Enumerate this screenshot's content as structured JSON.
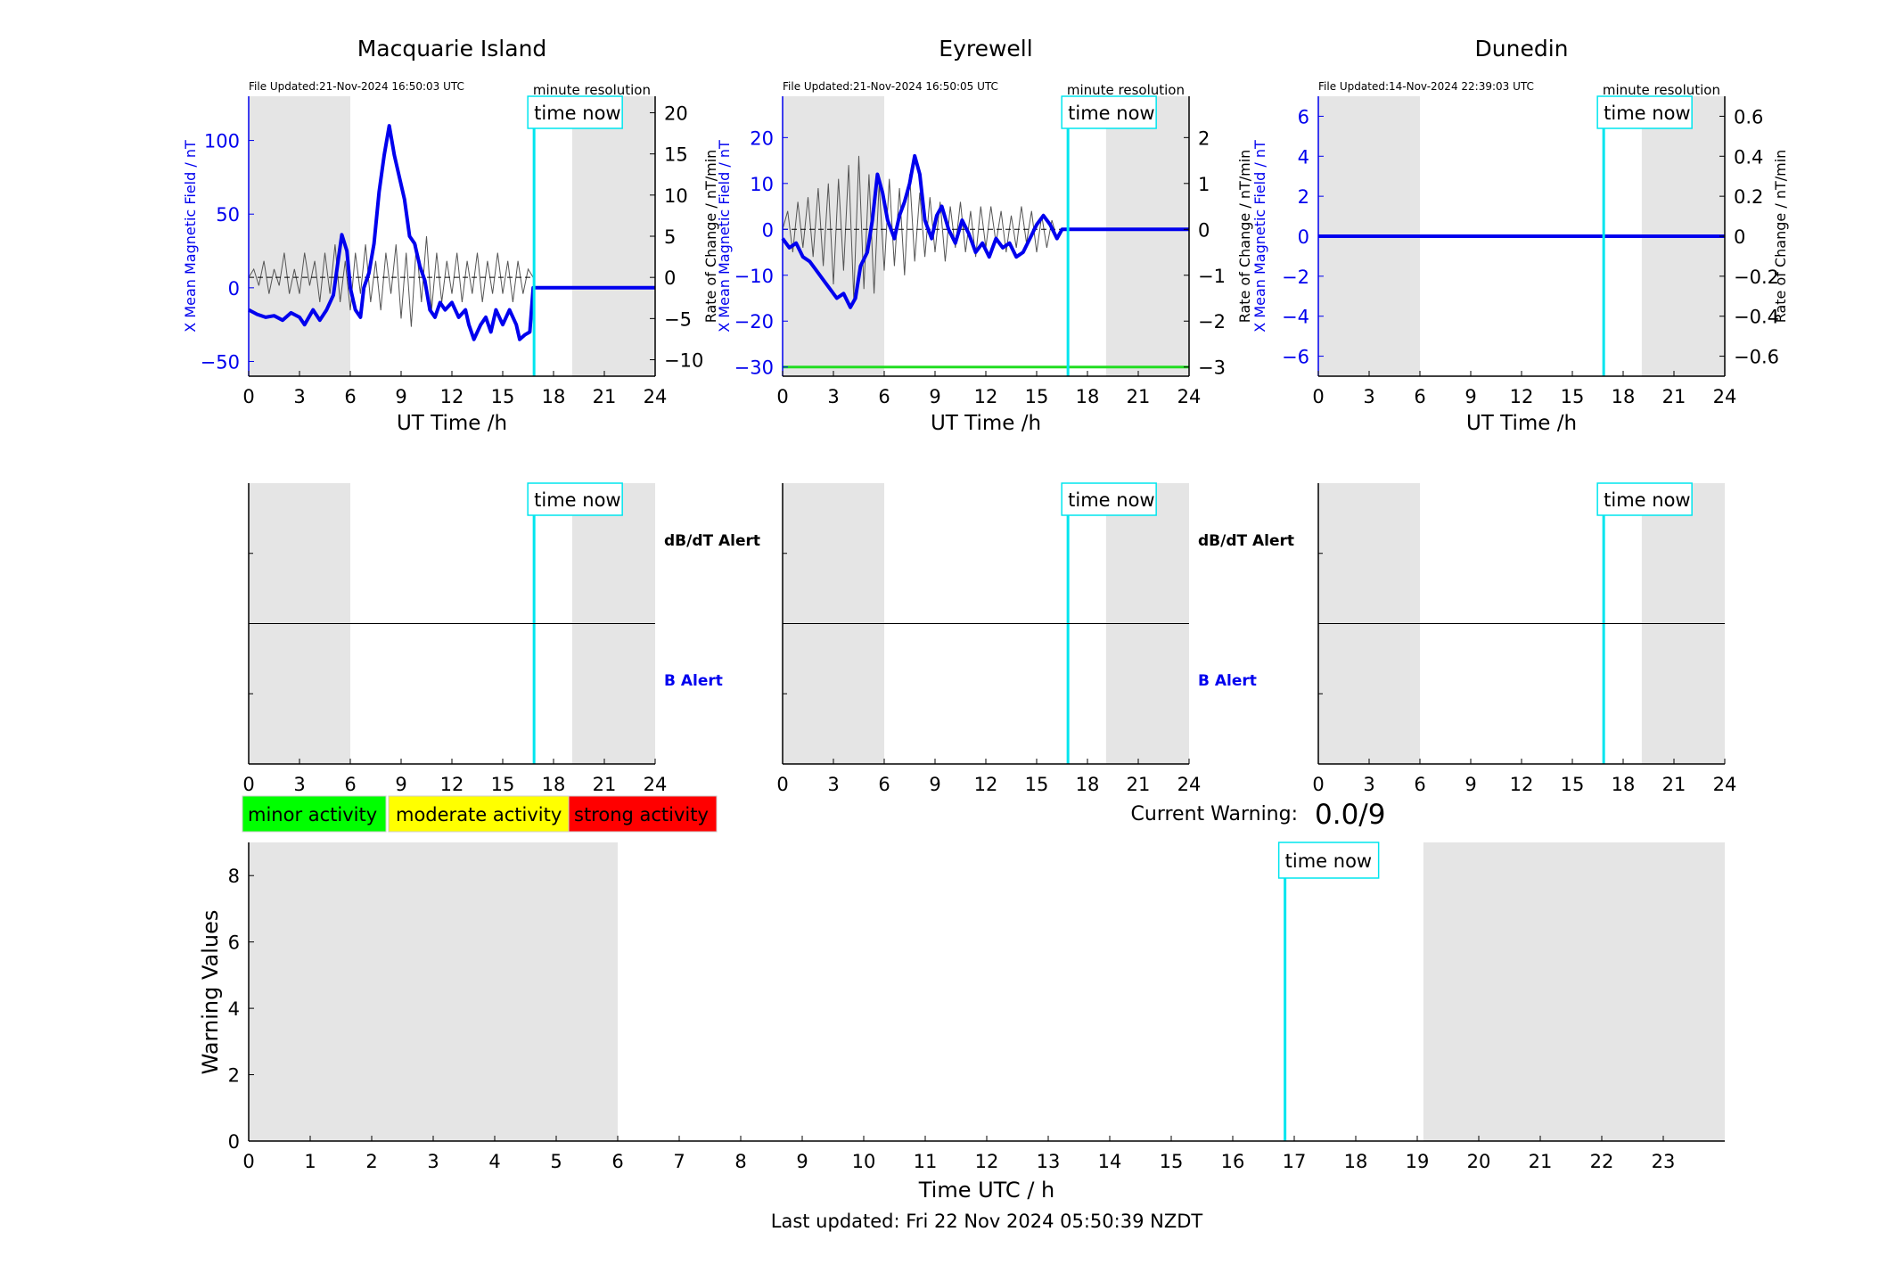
{
  "stations": [
    {
      "name": "Macquarie Island",
      "file_updated": "File Updated:21-Nov-2024 16:50:03 UTC",
      "resolution": "minute resolution",
      "left_axis_label": "X Mean Magnetic Field / nT",
      "right_axis_label": "Rate of Change / nT/min",
      "xlabel": "UT Time /h",
      "left_ticks": [
        -50,
        0,
        50,
        100
      ],
      "left_ylim": [
        -60,
        130
      ],
      "right_ticks": [
        -10,
        -5,
        0,
        5,
        10,
        15,
        20
      ],
      "right_ylim": [
        -12,
        22
      ],
      "has_threshold_line": false,
      "has_alert_labels": true,
      "magnetic_field": [
        [
          0,
          -15
        ],
        [
          0.5,
          -18
        ],
        [
          1,
          -20
        ],
        [
          1.5,
          -19
        ],
        [
          2,
          -22
        ],
        [
          2.5,
          -17
        ],
        [
          3,
          -20
        ],
        [
          3.3,
          -25
        ],
        [
          3.8,
          -15
        ],
        [
          4.2,
          -22
        ],
        [
          4.6,
          -15
        ],
        [
          5,
          -5
        ],
        [
          5.3,
          20
        ],
        [
          5.5,
          36
        ],
        [
          5.8,
          25
        ],
        [
          6,
          0
        ],
        [
          6.3,
          -15
        ],
        [
          6.6,
          -20
        ],
        [
          6.8,
          0
        ],
        [
          7.1,
          10
        ],
        [
          7.4,
          30
        ],
        [
          7.7,
          65
        ],
        [
          8.0,
          90
        ],
        [
          8.3,
          110
        ],
        [
          8.6,
          90
        ],
        [
          8.9,
          75
        ],
        [
          9.2,
          60
        ],
        [
          9.5,
          35
        ],
        [
          9.8,
          30
        ],
        [
          10.1,
          15
        ],
        [
          10.4,
          5
        ],
        [
          10.7,
          -15
        ],
        [
          11.0,
          -20
        ],
        [
          11.3,
          -10
        ],
        [
          11.6,
          -15
        ],
        [
          12.0,
          -10
        ],
        [
          12.4,
          -20
        ],
        [
          12.8,
          -15
        ],
        [
          13.0,
          -25
        ],
        [
          13.3,
          -35
        ],
        [
          13.7,
          -25
        ],
        [
          14.0,
          -20
        ],
        [
          14.3,
          -30
        ],
        [
          14.6,
          -15
        ],
        [
          15.0,
          -25
        ],
        [
          15.4,
          -15
        ],
        [
          15.8,
          -25
        ],
        [
          16.0,
          -35
        ],
        [
          16.3,
          -32
        ],
        [
          16.6,
          -30
        ],
        [
          16.8,
          0
        ],
        [
          24,
          0
        ]
      ],
      "rate_of_change": [
        [
          0,
          0
        ],
        [
          0.3,
          1
        ],
        [
          0.6,
          -1
        ],
        [
          0.9,
          2
        ],
        [
          1.2,
          -2
        ],
        [
          1.5,
          1
        ],
        [
          1.8,
          -1
        ],
        [
          2.1,
          3
        ],
        [
          2.4,
          -2
        ],
        [
          2.7,
          1
        ],
        [
          3.0,
          -2
        ],
        [
          3.3,
          3
        ],
        [
          3.6,
          -1
        ],
        [
          3.9,
          2
        ],
        [
          4.2,
          -3
        ],
        [
          4.5,
          3
        ],
        [
          4.8,
          -2
        ],
        [
          5.1,
          4
        ],
        [
          5.4,
          -3
        ],
        [
          5.7,
          2
        ],
        [
          6.0,
          -4
        ],
        [
          6.3,
          3
        ],
        [
          6.6,
          -2
        ],
        [
          6.9,
          4
        ],
        [
          7.2,
          -3
        ],
        [
          7.5,
          2
        ],
        [
          7.8,
          -4
        ],
        [
          8.1,
          3
        ],
        [
          8.4,
          -2
        ],
        [
          8.7,
          4
        ],
        [
          9.0,
          -5
        ],
        [
          9.3,
          3
        ],
        [
          9.6,
          -6
        ],
        [
          9.9,
          4
        ],
        [
          10.2,
          -3
        ],
        [
          10.5,
          5
        ],
        [
          10.8,
          -4
        ],
        [
          11.1,
          3
        ],
        [
          11.4,
          -3
        ],
        [
          11.7,
          2
        ],
        [
          12.0,
          -2
        ],
        [
          12.3,
          3
        ],
        [
          12.6,
          -3
        ],
        [
          12.9,
          2
        ],
        [
          13.2,
          -2
        ],
        [
          13.5,
          3
        ],
        [
          13.8,
          -3
        ],
        [
          14.1,
          2
        ],
        [
          14.4,
          -2
        ],
        [
          14.7,
          3
        ],
        [
          15.0,
          -2
        ],
        [
          15.3,
          2
        ],
        [
          15.6,
          -3
        ],
        [
          15.9,
          2
        ],
        [
          16.2,
          -2
        ],
        [
          16.5,
          1
        ],
        [
          16.8,
          0
        ]
      ]
    },
    {
      "name": "Eyrewell",
      "file_updated": "File Updated:21-Nov-2024 16:50:05 UTC",
      "resolution": "minute resolution",
      "left_axis_label": "X Mean Magnetic Field / nT",
      "right_axis_label": "Rate of Change / nT/min",
      "xlabel": "UT Time /h",
      "left_ticks": [
        -30,
        -20,
        -10,
        0,
        10,
        20
      ],
      "left_ylim": [
        -32,
        29
      ],
      "right_ticks": [
        -3,
        -2,
        -1,
        0,
        1,
        2
      ],
      "right_ylim": [
        -3.2,
        2.9
      ],
      "has_threshold_line": true,
      "threshold_value": -30,
      "has_alert_labels": true,
      "magnetic_field": [
        [
          0,
          -2
        ],
        [
          0.4,
          -4
        ],
        [
          0.8,
          -3
        ],
        [
          1.2,
          -6
        ],
        [
          1.6,
          -7
        ],
        [
          2.0,
          -9
        ],
        [
          2.4,
          -11
        ],
        [
          2.8,
          -13
        ],
        [
          3.2,
          -15
        ],
        [
          3.6,
          -14
        ],
        [
          4.0,
          -17
        ],
        [
          4.3,
          -15
        ],
        [
          4.6,
          -8
        ],
        [
          5.0,
          -5
        ],
        [
          5.3,
          2
        ],
        [
          5.6,
          12
        ],
        [
          5.9,
          8
        ],
        [
          6.2,
          2
        ],
        [
          6.6,
          -2
        ],
        [
          6.9,
          3
        ],
        [
          7.2,
          6
        ],
        [
          7.5,
          10
        ],
        [
          7.8,
          16
        ],
        [
          8.1,
          12
        ],
        [
          8.4,
          2
        ],
        [
          8.8,
          -2
        ],
        [
          9.1,
          3
        ],
        [
          9.4,
          5
        ],
        [
          9.8,
          0
        ],
        [
          10.2,
          -3
        ],
        [
          10.6,
          2
        ],
        [
          11.0,
          -1
        ],
        [
          11.4,
          -5
        ],
        [
          11.8,
          -3
        ],
        [
          12.2,
          -6
        ],
        [
          12.6,
          -2
        ],
        [
          13.0,
          -4
        ],
        [
          13.4,
          -3
        ],
        [
          13.8,
          -6
        ],
        [
          14.2,
          -5
        ],
        [
          14.6,
          -2
        ],
        [
          15.0,
          1
        ],
        [
          15.4,
          3
        ],
        [
          15.8,
          1
        ],
        [
          16.2,
          -2
        ],
        [
          16.5,
          0
        ],
        [
          24,
          0
        ]
      ],
      "rate_of_change": [
        [
          0,
          0
        ],
        [
          0.3,
          0.4
        ],
        [
          0.6,
          -0.5
        ],
        [
          0.9,
          0.6
        ],
        [
          1.2,
          -0.4
        ],
        [
          1.5,
          0.7
        ],
        [
          1.8,
          -0.6
        ],
        [
          2.1,
          0.9
        ],
        [
          2.4,
          -0.8
        ],
        [
          2.7,
          1.0
        ],
        [
          3.0,
          -1.2
        ],
        [
          3.3,
          1.1
        ],
        [
          3.6,
          -0.9
        ],
        [
          3.9,
          1.4
        ],
        [
          4.2,
          -1.5
        ],
        [
          4.5,
          1.6
        ],
        [
          4.8,
          -1.3
        ],
        [
          5.1,
          1.2
        ],
        [
          5.4,
          -1.4
        ],
        [
          5.7,
          1.0
        ],
        [
          6.0,
          -0.9
        ],
        [
          6.3,
          1.1
        ],
        [
          6.6,
          -0.8
        ],
        [
          6.9,
          0.9
        ],
        [
          7.2,
          -1.0
        ],
        [
          7.5,
          1.2
        ],
        [
          7.8,
          -0.7
        ],
        [
          8.1,
          0.8
        ],
        [
          8.4,
          -0.6
        ],
        [
          8.7,
          0.7
        ],
        [
          9.0,
          -0.5
        ],
        [
          9.3,
          0.6
        ],
        [
          9.6,
          -0.7
        ],
        [
          9.9,
          0.5
        ],
        [
          10.2,
          -0.4
        ],
        [
          10.5,
          0.6
        ],
        [
          10.8,
          -0.5
        ],
        [
          11.1,
          0.4
        ],
        [
          11.4,
          -0.6
        ],
        [
          11.7,
          0.5
        ],
        [
          12.0,
          -0.4
        ],
        [
          12.3,
          0.5
        ],
        [
          12.6,
          -0.3
        ],
        [
          12.9,
          0.4
        ],
        [
          13.2,
          -0.5
        ],
        [
          13.5,
          0.3
        ],
        [
          13.8,
          -0.4
        ],
        [
          14.1,
          0.5
        ],
        [
          14.4,
          -0.3
        ],
        [
          14.7,
          0.4
        ],
        [
          15.0,
          -0.5
        ],
        [
          15.3,
          0.3
        ],
        [
          15.6,
          -0.4
        ],
        [
          15.9,
          0.2
        ],
        [
          16.2,
          -0.2
        ],
        [
          16.5,
          0
        ]
      ]
    },
    {
      "name": "Dunedin",
      "file_updated": "File Updated:14-Nov-2024 22:39:03 UTC",
      "resolution": "minute resolution",
      "left_axis_label": "X Mean Magnetic Field / nT",
      "right_axis_label": "Rate of Change / nT/min",
      "xlabel": "UT Time /h",
      "left_ticks": [
        -6,
        -4,
        -2,
        0,
        2,
        4,
        6
      ],
      "left_ylim": [
        -7,
        7
      ],
      "right_ticks": [
        -0.6,
        -0.4,
        -0.2,
        0,
        0.2,
        0.4,
        0.6
      ],
      "right_ylim": [
        -0.7,
        0.7
      ],
      "has_threshold_line": false,
      "has_alert_labels": false,
      "magnetic_field": [
        [
          0,
          0
        ],
        [
          24,
          0
        ]
      ],
      "rate_of_change": []
    }
  ],
  "time_now_label": "time now",
  "time_now_hour": 16.85,
  "night_shading": [
    [
      0,
      6
    ],
    [
      19.1,
      24
    ]
  ],
  "x_ticks": [
    0,
    3,
    6,
    9,
    12,
    15,
    18,
    21,
    24
  ],
  "alert_labels": {
    "dbdt": "dB/dT Alert",
    "b": "B Alert"
  },
  "legend": [
    {
      "label": "minor activity",
      "color": "#00ff00"
    },
    {
      "label": "moderate activity",
      "color": "#ffff00"
    },
    {
      "label": "strong activity",
      "color": "#ff0000"
    }
  ],
  "current_warning": {
    "label": "Current Warning:",
    "value": "0.0/9"
  },
  "chart_data": {
    "type": "line",
    "xlabel": "Time UTC / h",
    "ylabel": "Warning Values",
    "xlim": [
      0,
      24
    ],
    "ylim": [
      0,
      9
    ],
    "x_ticks": [
      0,
      1,
      2,
      3,
      4,
      5,
      6,
      7,
      8,
      9,
      10,
      11,
      12,
      13,
      14,
      15,
      16,
      17,
      18,
      19,
      20,
      21,
      22,
      23
    ],
    "y_ticks": [
      0,
      2,
      4,
      6,
      8
    ],
    "series": []
  },
  "last_updated": "Last updated: Fri 22 Nov 2024 05:50:39 NZDT",
  "colors": {
    "field": "#0000ee",
    "rate": "#555555",
    "now": "#00e5ee",
    "shade": "#e5e5e5",
    "threshold": "#22dd22"
  }
}
